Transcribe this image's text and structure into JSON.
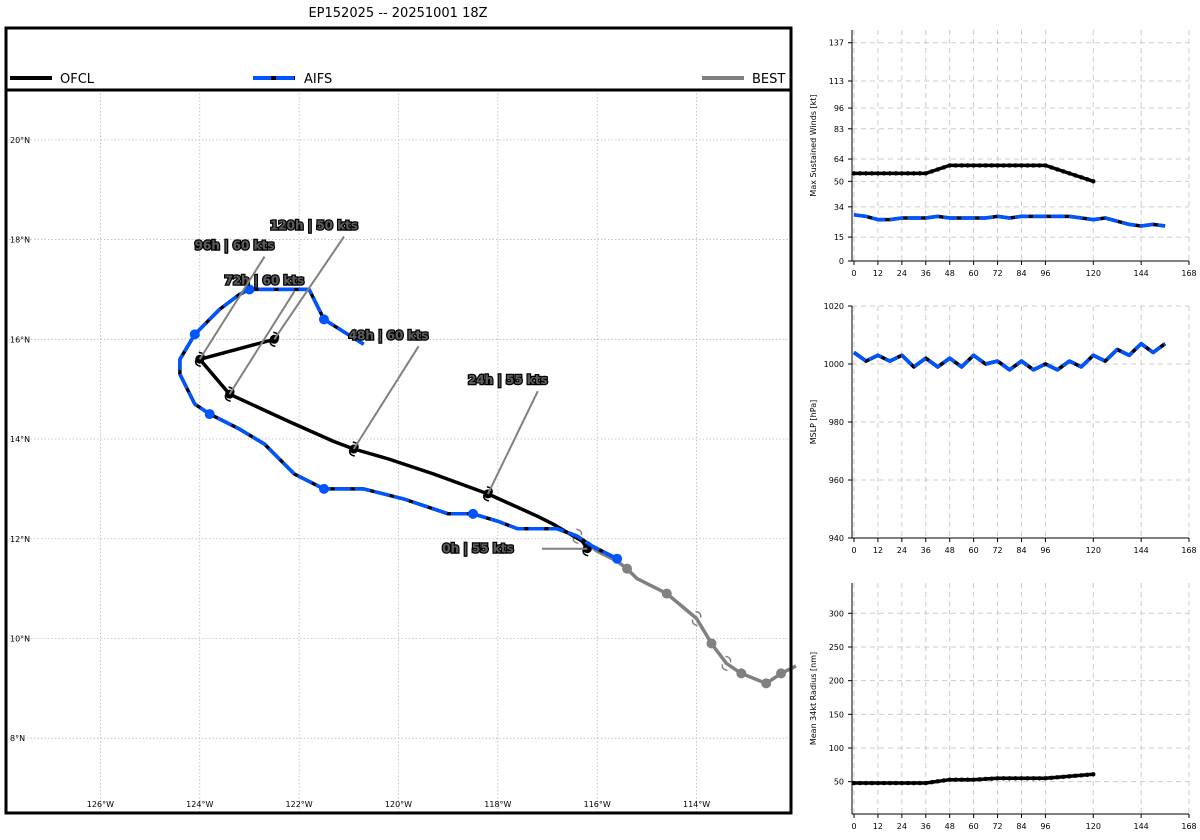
{
  "title": "EP152025 -- 20251001 18Z",
  "legend": [
    {
      "label": "OFCL",
      "color": "#000000",
      "style": "solid"
    },
    {
      "label": "AIFS",
      "color": "#0055ff",
      "style": "dashed"
    },
    {
      "label": "BEST",
      "color": "#808080",
      "style": "solid"
    }
  ],
  "map": {
    "lon_ticks": [
      -126,
      -124,
      -122,
      -120,
      -118,
      -116,
      -114
    ],
    "lon_labels": [
      "126°W",
      "124°W",
      "122°W",
      "120°W",
      "118°W",
      "116°W",
      "114°W"
    ],
    "lat_ticks": [
      8,
      10,
      12,
      14,
      16,
      18,
      20
    ],
    "lat_labels": [
      "8°N",
      "10°N",
      "12°N",
      "14°N",
      "16°N",
      "18°N",
      "20°N"
    ],
    "lon_range": [
      -127.9,
      -112.1
    ],
    "lat_range": [
      6.5,
      21.0
    ],
    "tracks": {
      "ofcl": [
        [
          -116.2,
          11.8
        ],
        [
          -116.3,
          11.95
        ],
        [
          -116.9,
          12.3
        ],
        [
          -117.2,
          12.45
        ],
        [
          -118.2,
          12.9
        ],
        [
          -119.3,
          13.3
        ],
        [
          -120.2,
          13.6
        ],
        [
          -120.9,
          13.8
        ],
        [
          -121.3,
          13.95
        ],
        [
          -122.2,
          14.35
        ],
        [
          -123.4,
          14.9
        ],
        [
          -124.0,
          15.6
        ],
        [
          -122.5,
          16.0
        ]
      ],
      "ofcl_markers": [
        [
          -116.2,
          11.8
        ],
        [
          -118.2,
          12.9
        ],
        [
          -120.9,
          13.8
        ],
        [
          -123.4,
          14.9
        ],
        [
          -124.0,
          15.6
        ],
        [
          -122.5,
          16.0
        ]
      ],
      "aifs": [
        [
          -115.6,
          11.6
        ],
        [
          -116.1,
          11.85
        ],
        [
          -116.4,
          12.05
        ],
        [
          -116.8,
          12.2
        ],
        [
          -117.2,
          12.2
        ],
        [
          -117.6,
          12.2
        ],
        [
          -118.0,
          12.35
        ],
        [
          -118.5,
          12.5
        ],
        [
          -119.0,
          12.5
        ],
        [
          -119.9,
          12.8
        ],
        [
          -120.7,
          13.0
        ],
        [
          -121.5,
          13.0
        ],
        [
          -122.1,
          13.3
        ],
        [
          -122.7,
          13.9
        ],
        [
          -123.2,
          14.2
        ],
        [
          -123.8,
          14.5
        ],
        [
          -124.1,
          14.7
        ],
        [
          -124.4,
          15.3
        ],
        [
          -124.4,
          15.6
        ],
        [
          -124.1,
          16.1
        ],
        [
          -123.6,
          16.6
        ],
        [
          -123.2,
          16.9
        ],
        [
          -123.0,
          17.0
        ],
        [
          -122.6,
          17.0
        ],
        [
          -122.2,
          17.0
        ],
        [
          -121.8,
          17.0
        ],
        [
          -121.5,
          16.4
        ],
        [
          -121.1,
          16.15
        ],
        [
          -120.7,
          15.9
        ]
      ],
      "aifs_markers": [
        [
          -115.6,
          11.6
        ],
        [
          -118.5,
          12.5
        ],
        [
          -121.5,
          13.0
        ],
        [
          -123.8,
          14.5
        ],
        [
          -124.1,
          16.1
        ],
        [
          -123.0,
          17.0
        ],
        [
          -121.5,
          16.4
        ]
      ],
      "best": [
        [
          -112.0,
          9.45
        ],
        [
          -112.3,
          9.3
        ],
        [
          -112.6,
          9.1
        ],
        [
          -113.1,
          9.3
        ],
        [
          -113.4,
          9.5
        ],
        [
          -113.7,
          9.9
        ],
        [
          -114.0,
          10.4
        ],
        [
          -114.6,
          10.9
        ],
        [
          -115.2,
          11.2
        ],
        [
          -115.4,
          11.4
        ],
        [
          -115.6,
          11.55
        ],
        [
          -116.0,
          11.75
        ],
        [
          -116.4,
          12.05
        ],
        [
          -116.8,
          12.2
        ]
      ],
      "best_markers": [
        [
          -112.3,
          9.3
        ],
        [
          -112.6,
          9.1
        ],
        [
          -113.1,
          9.3
        ],
        [
          -113.7,
          9.9
        ],
        [
          -114.6,
          10.9
        ],
        [
          -115.4,
          11.4
        ]
      ],
      "best_dashes": [
        [
          -113.4,
          9.5
        ],
        [
          -114.0,
          10.4
        ],
        [
          -116.4,
          12.05
        ]
      ]
    },
    "annotations": [
      {
        "text": "0h | 55 kts",
        "at": [
          -118.4,
          11.8
        ],
        "to": [
          -116.2,
          11.8
        ]
      },
      {
        "text": "24h | 55 kts",
        "at": [
          -117.8,
          15.1
        ],
        "to": [
          -118.2,
          12.9
        ]
      },
      {
        "text": "48h | 60 kts",
        "at": [
          -120.2,
          16.0
        ],
        "to": [
          -120.9,
          13.8
        ]
      },
      {
        "text": "72h | 60 kts",
        "at": [
          -122.7,
          17.1
        ],
        "to": [
          -123.4,
          14.9
        ]
      },
      {
        "text": "96h | 60 kts",
        "at": [
          -123.3,
          17.8
        ],
        "to": [
          -124.0,
          15.6
        ]
      },
      {
        "text": "120h | 50 kts",
        "at": [
          -121.7,
          18.2
        ],
        "to": [
          -122.5,
          16.0
        ]
      }
    ]
  },
  "chart_data": [
    {
      "type": "line",
      "ylabel": "Max Sustained Winds [kt]",
      "xlim": [
        -1,
        168
      ],
      "ylim": [
        0,
        145
      ],
      "x_ticks": [
        0,
        12,
        24,
        36,
        48,
        60,
        72,
        84,
        96,
        120,
        144,
        168
      ],
      "y_ticks": [
        0,
        15,
        34,
        50,
        64,
        83,
        96,
        113,
        137
      ],
      "series": [
        {
          "name": "OFCL",
          "x": [
            0,
            12,
            24,
            36,
            48,
            60,
            72,
            84,
            96,
            108,
            120
          ],
          "y": [
            55,
            55,
            55,
            55,
            60,
            60,
            60,
            60,
            60,
            55,
            50
          ]
        },
        {
          "name": "AIFS",
          "x": [
            0,
            6,
            12,
            18,
            24,
            30,
            36,
            42,
            48,
            54,
            60,
            66,
            72,
            78,
            84,
            90,
            96,
            102,
            108,
            114,
            120,
            126,
            132,
            138,
            144,
            150,
            156
          ],
          "y": [
            29,
            28,
            26,
            26,
            27,
            27,
            27,
            28,
            27,
            27,
            27,
            27,
            28,
            27,
            28,
            28,
            28,
            28,
            28,
            27,
            26,
            27,
            25,
            23,
            22,
            23,
            22
          ]
        }
      ]
    },
    {
      "type": "line",
      "ylabel": "MSLP [hPa]",
      "xlim": [
        -1,
        168
      ],
      "ylim": [
        940,
        1020
      ],
      "x_ticks": [
        0,
        12,
        24,
        36,
        48,
        60,
        72,
        84,
        96,
        120,
        144,
        168
      ],
      "y_ticks": [
        940,
        960,
        980,
        1000,
        1020
      ],
      "series": [
        {
          "name": "OFCL",
          "x": [
            0,
            6,
            12,
            18,
            24,
            30,
            36,
            42,
            48,
            54,
            60,
            66,
            72,
            78,
            84,
            90,
            96,
            102,
            108,
            114,
            120,
            126,
            132,
            138,
            144,
            150,
            156
          ],
          "y": [
            1004,
            1001,
            1003,
            1001,
            1003,
            999,
            1002,
            999,
            1002,
            999,
            1003,
            1000,
            1001,
            998,
            1001,
            998,
            1000,
            998,
            1001,
            999,
            1003,
            1001,
            1005,
            1003,
            1007,
            1004,
            1007
          ]
        },
        {
          "name": "AIFS",
          "x": [
            0,
            6,
            12,
            18,
            24,
            30,
            36,
            42,
            48,
            54,
            60,
            66,
            72,
            78,
            84,
            90,
            96,
            102,
            108,
            114,
            120,
            126,
            132,
            138,
            144,
            150,
            156
          ],
          "y": [
            1004,
            1001,
            1003,
            1001,
            1003,
            999,
            1002,
            999,
            1002,
            999,
            1003,
            1000,
            1001,
            998,
            1001,
            998,
            1000,
            998,
            1001,
            999,
            1003,
            1001,
            1005,
            1003,
            1007,
            1004,
            1007
          ]
        }
      ]
    },
    {
      "type": "line",
      "ylabel": "Mean 34kt Radius [nm]",
      "xlim": [
        -1,
        168
      ],
      "ylim": [
        2,
        345
      ],
      "x_ticks": [
        0,
        12,
        24,
        36,
        48,
        60,
        72,
        84,
        96,
        120,
        144,
        168
      ],
      "y_ticks": [
        50,
        100,
        150,
        200,
        250,
        300
      ],
      "series": [
        {
          "name": "OFCL",
          "x": [
            0,
            12,
            24,
            36,
            48,
            60,
            72,
            84,
            96,
            108,
            120
          ],
          "y": [
            48,
            48,
            48,
            48,
            53,
            53,
            55,
            55,
            55,
            58,
            61
          ]
        }
      ]
    }
  ]
}
